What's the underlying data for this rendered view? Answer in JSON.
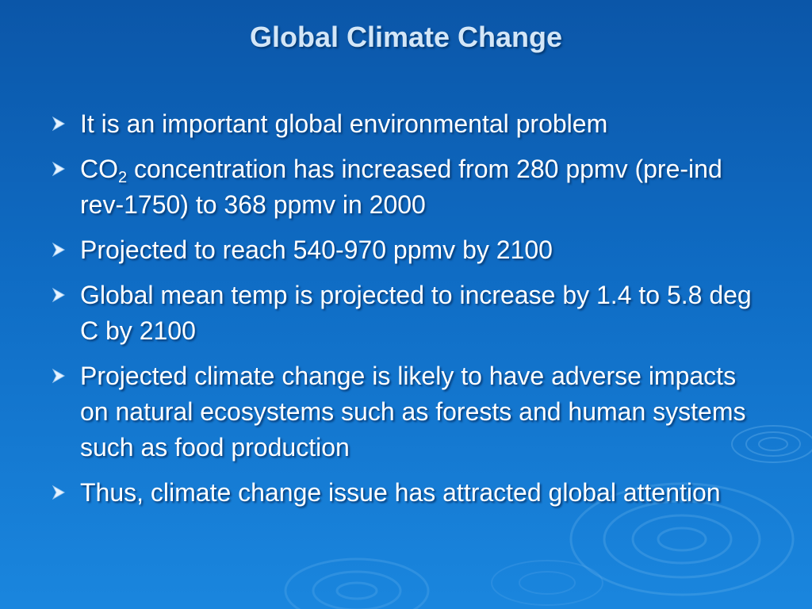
{
  "slide": {
    "title": "Global Climate Change",
    "bullets": [
      {
        "text": "It is an important global environmental problem"
      },
      {
        "prefix": "CO",
        "subscript": "2",
        "text": " concentration has increased from 280 ppmv (pre-ind rev-1750) to 368 ppmv in 2000"
      },
      {
        "text": "Projected to reach 540-970 ppmv by 2100"
      },
      {
        "text": "Global mean temp is projected to increase by 1.4 to 5.8 deg C by 2100"
      },
      {
        "text": "Projected climate change is likely to have adverse impacts on natural ecosystems such as forests and human systems such as food production"
      },
      {
        "text": "Thus, climate change issue has attracted global attention"
      }
    ]
  },
  "colors": {
    "background_top": "#0b56a8",
    "background_bottom": "#1a86de",
    "title": "#d3e6f7",
    "bullet_marker": "#e8f3ff"
  },
  "icons": {
    "bullet_marker": "chevron-right-arrowhead-icon",
    "background_decoration": "water-ripple-icon"
  }
}
